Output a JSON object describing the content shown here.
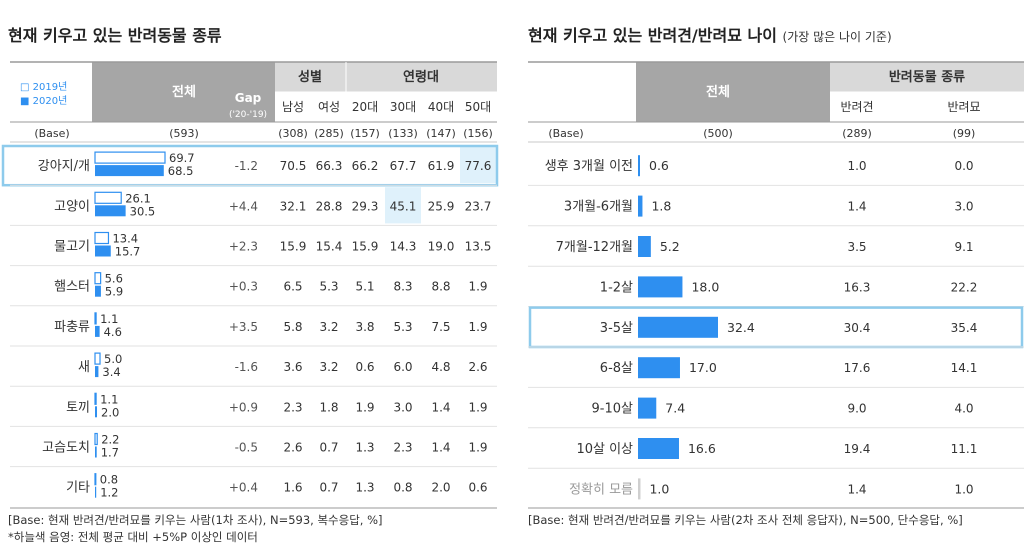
{
  "colors": {
    "bar_2020": "#2e8ff0",
    "bar_2019_stroke": "#2e8ff0",
    "header_dark": "#a6a6a6",
    "header_light": "#d9d9d9",
    "highlight_border": "#8ecbec",
    "highlight_cell": "#dff1fb",
    "text": "#333333"
  },
  "left": {
    "title": "현재 키우고 있는 반려동물 종류",
    "legend_2019": "□ 2019년",
    "legend_2020": "■ 2020년",
    "header_total": "전체",
    "header_gap": "Gap",
    "header_gap_sub": "('20-'19)",
    "header_gender": "성별",
    "header_age": "연령대",
    "sub_headers": [
      "남성",
      "여성",
      "20대",
      "30대",
      "40대",
      "50대"
    ],
    "base_label": "(Base)",
    "base_total": "(593)",
    "base_values": [
      "(308)",
      "(285)",
      "(157)",
      "(133)",
      "(147)",
      "(156)"
    ],
    "footnote1": "[Base: 현재 반려견/반려묘를 키우는 사람(1차 조사), N=593, 복수응답, %]",
    "footnote2": "*하늘색 음영: 전체 평균 대비 +5%P 이상인 데이터"
  },
  "right": {
    "title_main": "현재 키우고 있는 반려견/반려묘 나이",
    "title_sub": "(가장 많은 나이 기준)",
    "header_total": "전체",
    "header_group": "반려동물 종류",
    "sub_headers": [
      "반려견",
      "반려묘"
    ],
    "base_label": "(Base)",
    "base_total": "(500)",
    "base_values": [
      "(289)",
      "(99)"
    ],
    "footnote": "[Base: 현재 반려견/반려묘를 키우는 사람(2차 조사 전체 응답자), N=500, 단수응답, %]"
  },
  "chart_data": [
    {
      "type": "table",
      "title": "현재 키우고 있는 반려동물 종류",
      "series": [
        {
          "name": "2019년"
        },
        {
          "name": "2020년"
        }
      ],
      "rows": [
        {
          "label": "강아지/개",
          "v2019": 69.7,
          "v2020": 68.5,
          "gap": "-1.2",
          "cells": [
            "70.5",
            "66.3",
            "66.2",
            "67.7",
            "61.9",
            "77.6"
          ],
          "row_highlight": true,
          "cell_highlight": [
            5
          ]
        },
        {
          "label": "고양이",
          "v2019": 26.1,
          "v2020": 30.5,
          "gap": "+4.4",
          "cells": [
            "32.1",
            "28.8",
            "29.3",
            "45.1",
            "25.9",
            "23.7"
          ],
          "row_highlight": false,
          "cell_highlight": [
            3
          ]
        },
        {
          "label": "물고기",
          "v2019": 13.4,
          "v2020": 15.7,
          "gap": "+2.3",
          "cells": [
            "15.9",
            "15.4",
            "15.9",
            "14.3",
            "19.0",
            "13.5"
          ],
          "row_highlight": false,
          "cell_highlight": []
        },
        {
          "label": "햄스터",
          "v2019": 5.6,
          "v2020": 5.9,
          "gap": "+0.3",
          "cells": [
            "6.5",
            "5.3",
            "5.1",
            "8.3",
            "8.8",
            "1.9"
          ],
          "row_highlight": false,
          "cell_highlight": []
        },
        {
          "label": "파충류",
          "v2019": 1.1,
          "v2020": 4.6,
          "gap": "+3.5",
          "cells": [
            "5.8",
            "3.2",
            "3.8",
            "5.3",
            "7.5",
            "1.9"
          ],
          "row_highlight": false,
          "cell_highlight": []
        },
        {
          "label": "새",
          "v2019": 5.0,
          "v2020": 3.4,
          "gap": "-1.6",
          "cells": [
            "3.6",
            "3.2",
            "0.6",
            "6.0",
            "4.8",
            "2.6"
          ],
          "row_highlight": false,
          "cell_highlight": []
        },
        {
          "label": "토끼",
          "v2019": 1.1,
          "v2020": 2.0,
          "gap": "+0.9",
          "cells": [
            "2.3",
            "1.8",
            "1.9",
            "3.0",
            "1.4",
            "1.9"
          ],
          "row_highlight": false,
          "cell_highlight": []
        },
        {
          "label": "고슴도치",
          "v2019": 2.2,
          "v2020": 1.7,
          "gap": "-0.5",
          "cells": [
            "2.6",
            "0.7",
            "1.3",
            "2.3",
            "1.4",
            "1.9"
          ],
          "row_highlight": false,
          "cell_highlight": []
        },
        {
          "label": "기타",
          "v2019": 0.8,
          "v2020": 1.2,
          "gap": "+0.4",
          "cells": [
            "1.6",
            "0.7",
            "1.3",
            "0.8",
            "2.0",
            "0.6"
          ],
          "row_highlight": false,
          "cell_highlight": []
        }
      ]
    },
    {
      "type": "table",
      "title": "현재 키우고 있는 반려견/반려묘 나이",
      "rows": [
        {
          "label": "생후 3개월 이전",
          "total": 0.6,
          "dog": "1.0",
          "cat": "0.0",
          "row_highlight": false,
          "muted": false
        },
        {
          "label": "3개월-6개월",
          "total": 1.8,
          "dog": "1.4",
          "cat": "3.0",
          "row_highlight": false,
          "muted": false
        },
        {
          "label": "7개월-12개월",
          "total": 5.2,
          "dog": "3.5",
          "cat": "9.1",
          "row_highlight": false,
          "muted": false
        },
        {
          "label": "1-2살",
          "total": 18.0,
          "dog": "16.3",
          "cat": "22.2",
          "row_highlight": false,
          "muted": false
        },
        {
          "label": "3-5살",
          "total": 32.4,
          "dog": "30.4",
          "cat": "35.4",
          "row_highlight": true,
          "muted": false
        },
        {
          "label": "6-8살",
          "total": 17.0,
          "dog": "17.6",
          "cat": "14.1",
          "row_highlight": false,
          "muted": false
        },
        {
          "label": "9-10살",
          "total": 7.4,
          "dog": "9.0",
          "cat": "4.0",
          "row_highlight": false,
          "muted": false
        },
        {
          "label": "10살 이상",
          "total": 16.6,
          "dog": "19.4",
          "cat": "11.1",
          "row_highlight": false,
          "muted": false
        },
        {
          "label": "정확히 모름",
          "total": 1.0,
          "dog": "1.4",
          "cat": "1.0",
          "row_highlight": false,
          "muted": true
        }
      ]
    }
  ]
}
